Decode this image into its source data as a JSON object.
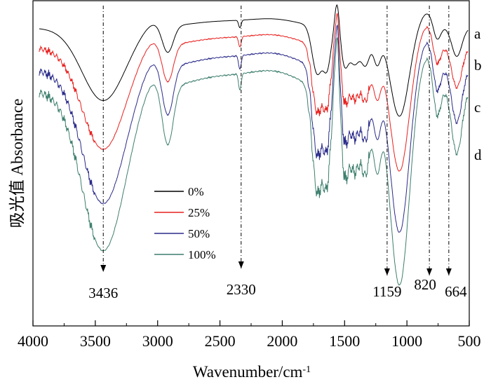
{
  "chart_data": {
    "type": "line",
    "title": "",
    "xlabel": "Wavenumber/cm",
    "xlabel_sup": "-1",
    "ylabel_cn": "吸光值",
    "ylabel_en": "Absorbance",
    "xlim": [
      4000,
      500
    ],
    "xticks": [
      4000,
      3500,
      3000,
      2500,
      2000,
      1500,
      1000,
      500
    ],
    "legend_position": "center-left",
    "series": [
      {
        "name": "0%",
        "tag": "a",
        "color": "#000000",
        "offset": 0.0,
        "noise": 0.0
      },
      {
        "name": "25%",
        "tag": "b",
        "color": "#e8211f",
        "offset": 1.0,
        "noise": 0.35
      },
      {
        "name": "50%",
        "tag": "c",
        "color": "#2b2b8a",
        "offset": 2.1,
        "noise": 0.45
      },
      {
        "name": "100%",
        "tag": "d",
        "color": "#3e7f6e",
        "offset": 3.0,
        "noise": 0.5
      }
    ],
    "annotations": [
      {
        "label": "3436",
        "x": 3436
      },
      {
        "label": "2330",
        "x": 2330
      },
      {
        "label": "1159",
        "x": 1159
      },
      {
        "label": "820",
        "x": 820
      },
      {
        "label": "664",
        "x": 664
      }
    ]
  }
}
